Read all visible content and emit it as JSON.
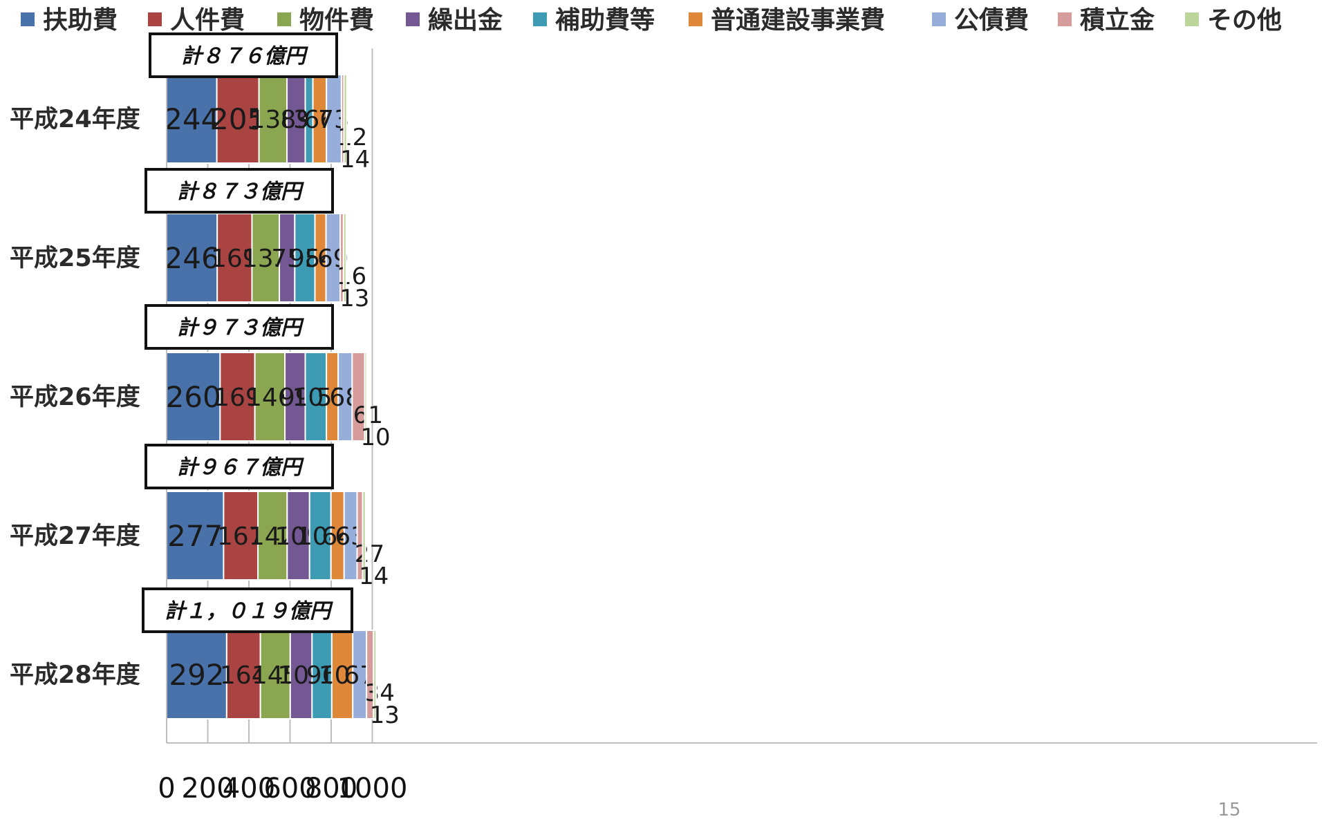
{
  "chart_data": {
    "type": "bar",
    "orientation": "horizontal",
    "stacked": true,
    "categories": [
      "平成24年度",
      "平成25年度",
      "平成26年度",
      "平成27年度",
      "平成28年度"
    ],
    "totals": [
      "計８７６億円",
      "計８７３億円",
      "計９７３億円",
      "計９６７億円",
      "計１，０１９億円"
    ],
    "series": [
      {
        "name": "扶助費",
        "color": "#4A72AA",
        "values": [
          244,
          246,
          260,
          277,
          292
        ]
      },
      {
        "name": "人件費",
        "color": "#A94442",
        "values": [
          205,
          169,
          169,
          167,
          164
        ]
      },
      {
        "name": "物件費",
        "color": "#8BA650",
        "values": [
          136,
          133,
          146,
          142,
          145
        ]
      },
      {
        "name": "繰出金",
        "color": "#735893",
        "values": [
          89,
          75,
          99,
          109,
          106
        ]
      },
      {
        "name": "補助費等",
        "color": "#3E9BB4",
        "values": [
          37,
          98,
          103,
          104,
          96
        ]
      },
      {
        "name": "普通建設事業費",
        "color": "#E0883A",
        "values": [
          66,
          54,
          57,
          64,
          102
        ]
      },
      {
        "name": "公債費",
        "color": "#97ADDA",
        "values": [
          73,
          69,
          68,
          63,
          67
        ]
      },
      {
        "name": "積立金",
        "color": "#D59C9B",
        "values": [
          12,
          16,
          61,
          27,
          34
        ]
      },
      {
        "name": "その他",
        "color": "#BCD59C",
        "values": [
          14,
          13,
          10,
          14,
          13
        ]
      }
    ],
    "xlim": [
      0,
      1100
    ],
    "xticks": [
      0,
      200,
      400,
      600,
      800,
      1000
    ],
    "grid": true,
    "legend": "top"
  },
  "page_number": "15"
}
